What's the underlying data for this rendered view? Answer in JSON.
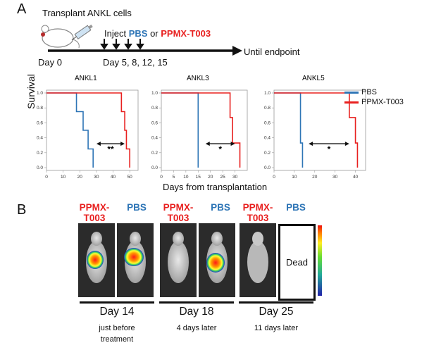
{
  "panel_a": {
    "letter": "A",
    "header": "Transplant ANKL cells",
    "inject_prefix": "Inject",
    "inject_pbs": "PBS",
    "inject_or": "or",
    "inject_drug": "PPMX-T003",
    "day0": "Day 0",
    "days": "Day 5, 8, 12, 15",
    "until": "Until endpoint",
    "ylabel": "Survival",
    "xlabel": "Days from transplantation"
  },
  "legend": [
    {
      "name": "PBS",
      "color": "#2e75b6"
    },
    {
      "name": "PPMX-T003",
      "color": "#e8201f"
    }
  ],
  "chart_data": [
    {
      "type": "line",
      "title": "ANKL1",
      "xlim": [
        0,
        55
      ],
      "ylim": [
        0,
        1
      ],
      "xticks": [
        0,
        10,
        20,
        30,
        40,
        50
      ],
      "yticks": [
        "0.0",
        "0.2",
        "0.4",
        "0.6",
        "0.8",
        "1.0"
      ],
      "series": [
        {
          "name": "PBS",
          "color": "#2e75b6",
          "points": [
            [
              0,
              1.0
            ],
            [
              18,
              1.0
            ],
            [
              18,
              0.75
            ],
            [
              22,
              0.75
            ],
            [
              22,
              0.5
            ],
            [
              25,
              0.5
            ],
            [
              25,
              0.25
            ],
            [
              28,
              0.25
            ],
            [
              28,
              0
            ]
          ]
        },
        {
          "name": "PPMX-T003",
          "color": "#e8201f",
          "points": [
            [
              0,
              1.0
            ],
            [
              45,
              1.0
            ],
            [
              45,
              0.75
            ],
            [
              47,
              0.75
            ],
            [
              47,
              0.5
            ],
            [
              48,
              0.5
            ],
            [
              48,
              0.25
            ],
            [
              50,
              0.25
            ],
            [
              50,
              0
            ]
          ]
        }
      ],
      "annotation": "**",
      "arrow_x": [
        30,
        47
      ]
    },
    {
      "type": "line",
      "title": "ANKL3",
      "xlim": [
        0,
        35
      ],
      "ylim": [
        0,
        1
      ],
      "xticks": [
        0,
        5,
        10,
        15,
        20,
        25,
        30
      ],
      "yticks": [
        "0.0",
        "0.2",
        "0.4",
        "0.6",
        "0.8",
        "1.0"
      ],
      "series": [
        {
          "name": "PBS",
          "color": "#2e75b6",
          "points": [
            [
              0,
              1.0
            ],
            [
              15,
              1.0
            ],
            [
              15,
              0
            ]
          ]
        },
        {
          "name": "PPMX-T003",
          "color": "#e8201f",
          "points": [
            [
              0,
              1.0
            ],
            [
              28,
              1.0
            ],
            [
              28,
              0.67
            ],
            [
              29,
              0.67
            ],
            [
              29,
              0.33
            ],
            [
              32,
              0.33
            ],
            [
              32,
              0
            ]
          ]
        }
      ],
      "annotation": "*",
      "arrow_x": [
        18,
        30
      ]
    },
    {
      "type": "line",
      "title": "ANKL5",
      "xlim": [
        0,
        45
      ],
      "ylim": [
        0,
        1
      ],
      "xticks": [
        0,
        10,
        20,
        30,
        40
      ],
      "yticks": [
        "0.0",
        "0.2",
        "0.4",
        "0.6",
        "0.8",
        "1.0"
      ],
      "series": [
        {
          "name": "PBS",
          "color": "#2e75b6",
          "points": [
            [
              0,
              1.0
            ],
            [
              13,
              1.0
            ],
            [
              13,
              0.33
            ],
            [
              14,
              0.33
            ],
            [
              14,
              0
            ]
          ]
        },
        {
          "name": "PPMX-T003",
          "color": "#e8201f",
          "points": [
            [
              0,
              1.0
            ],
            [
              37,
              1.0
            ],
            [
              37,
              0.67
            ],
            [
              40,
              0.67
            ],
            [
              40,
              0.33
            ],
            [
              41,
              0.33
            ],
            [
              41,
              0
            ]
          ]
        }
      ],
      "annotation": "*",
      "arrow_x": [
        17,
        37
      ]
    }
  ],
  "panel_b": {
    "letter": "B",
    "groups": [
      {
        "drug_label": "PPMX-\nT003",
        "pbs_label": "PBS",
        "day": "Day 14",
        "sub": "just before\ntreatment"
      },
      {
        "drug_label": "PPMX-\nT003",
        "pbs_label": "PBS",
        "day": "Day 18",
        "sub": "4 days later"
      },
      {
        "drug_label": "PPMX-\nT003",
        "pbs_label": "PBS",
        "day": "Day 25",
        "sub": "11 days later"
      }
    ],
    "dead_label": "Dead"
  }
}
